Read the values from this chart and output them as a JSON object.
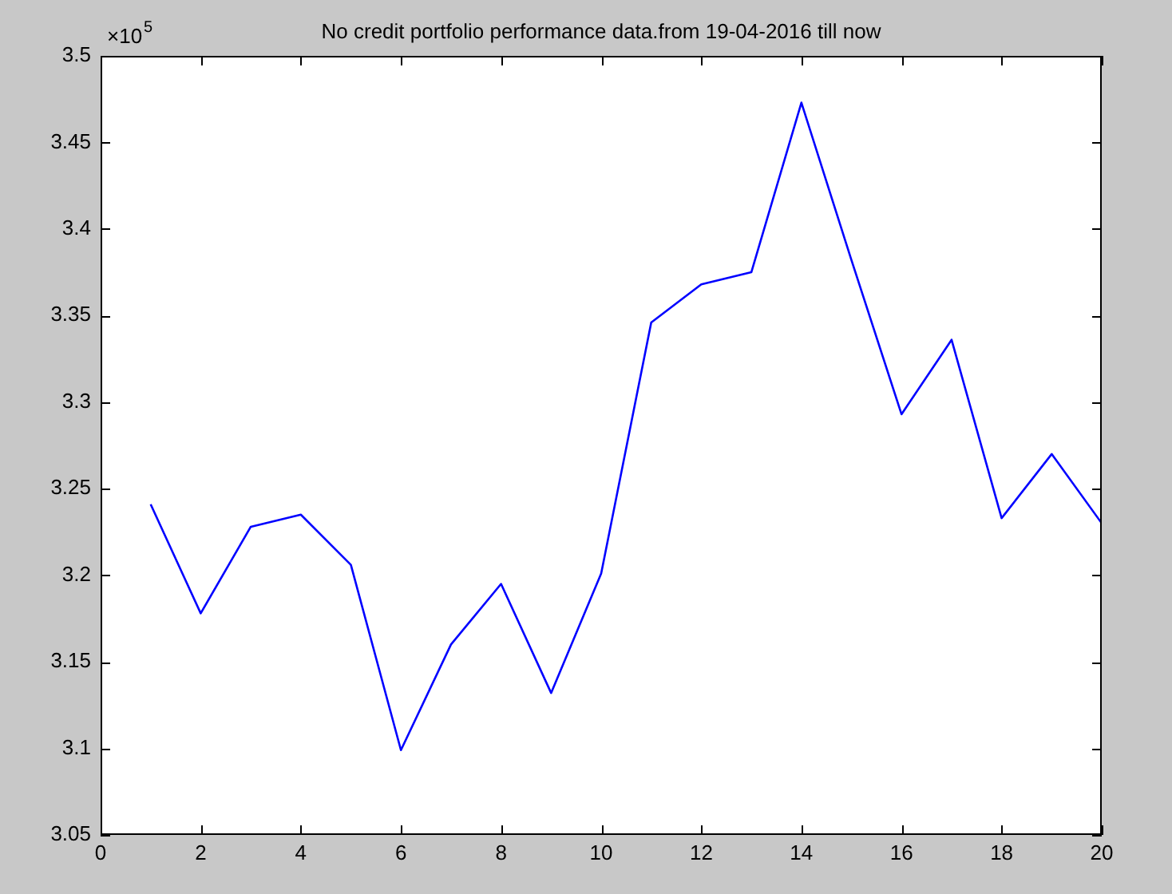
{
  "chart_data": {
    "type": "line",
    "title": "No credit portfolio performance data.from 19-04-2016 till now",
    "x": [
      1,
      2,
      3,
      4,
      5,
      6,
      7,
      8,
      9,
      10,
      11,
      12,
      13,
      14,
      15,
      16,
      17,
      18,
      19,
      20
    ],
    "series": [
      {
        "color": "#0000ff",
        "values": [
          3.241,
          3.178,
          3.228,
          3.235,
          3.206,
          3.099,
          3.16,
          3.195,
          3.132,
          3.201,
          3.346,
          3.368,
          3.375,
          3.473,
          3.382,
          3.293,
          3.336,
          3.233,
          3.27,
          3.23
        ]
      }
    ],
    "xlim": [
      0,
      20
    ],
    "xticks": [
      0,
      2,
      4,
      6,
      8,
      10,
      12,
      14,
      16,
      18,
      20
    ],
    "ylim": [
      3.05,
      3.5
    ],
    "yticks": [
      3.05,
      3.1,
      3.15,
      3.2,
      3.25,
      3.3,
      3.35,
      3.4,
      3.45,
      3.5
    ],
    "annotations": [
      "×10$^{5}$"
    ],
    "grid": false,
    "legend": false,
    "marker": "none",
    "line_style": "solid"
  }
}
